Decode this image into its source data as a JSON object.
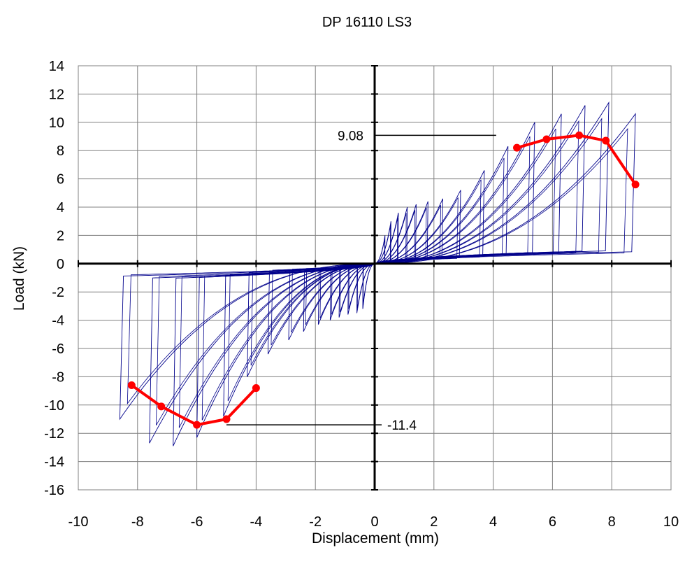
{
  "chart_data": {
    "type": "line",
    "title": "DP 16110 LS3",
    "xlabel": "Displacement (mm)",
    "ylabel": "Load (kN)",
    "xlim": [
      -10,
      10
    ],
    "ylim": [
      -16,
      14
    ],
    "x_ticks": [
      -10,
      -8,
      -6,
      -4,
      -2,
      0,
      2,
      4,
      6,
      8,
      10
    ],
    "y_ticks": [
      14,
      12,
      10,
      8,
      6,
      4,
      2,
      0,
      -2,
      -4,
      -6,
      -8,
      -10,
      -12,
      -14,
      -16
    ],
    "grid": true,
    "legend": "none",
    "colors": {
      "hysteresis": "#00008b",
      "envelope": "#ff0000",
      "axis": "#000000",
      "grid": "#808080"
    },
    "annotations": [
      {
        "text": "9.08",
        "x": 4.1,
        "y": 9.08
      },
      {
        "text": "-11.4",
        "x": -5.0,
        "y": -11.4
      }
    ],
    "series": [
      {
        "style": "envelope",
        "x": [
          4.8,
          5.8,
          6.9,
          7.8,
          8.8
        ],
        "y": [
          8.2,
          8.8,
          9.08,
          8.7,
          5.6
        ]
      },
      {
        "style": "envelope",
        "x": [
          -8.2,
          -7.2,
          -6.0,
          -5.0,
          -4.0
        ],
        "y": [
          -8.6,
          -10.1,
          -11.4,
          -11.0,
          -8.8
        ]
      },
      {
        "style": "hysteresis",
        "peaks": [
          [
            0.35,
            2.0,
            -0.4,
            -3.2
          ],
          [
            0.55,
            3.0,
            -0.6,
            -3.5
          ],
          [
            0.8,
            3.6,
            -0.9,
            -3.6
          ],
          [
            1.1,
            4.0,
            -1.2,
            -3.8
          ],
          [
            1.4,
            4.2,
            -1.5,
            -4.0
          ],
          [
            1.8,
            4.4,
            -1.9,
            -4.3
          ],
          [
            2.3,
            4.6,
            -2.4,
            -4.8
          ],
          [
            2.9,
            5.2,
            -2.9,
            -5.4
          ],
          [
            3.7,
            6.6,
            -3.6,
            -6.4
          ],
          [
            4.5,
            8.3,
            -4.3,
            -8.0
          ],
          [
            5.4,
            10.0,
            -5.1,
            -10.8
          ],
          [
            6.3,
            10.6,
            -6.0,
            -12.3
          ],
          [
            7.1,
            11.2,
            -6.8,
            -12.9
          ],
          [
            7.9,
            11.4,
            -7.6,
            -12.7
          ],
          [
            8.8,
            10.6,
            -8.6,
            -11.0
          ]
        ]
      }
    ]
  }
}
